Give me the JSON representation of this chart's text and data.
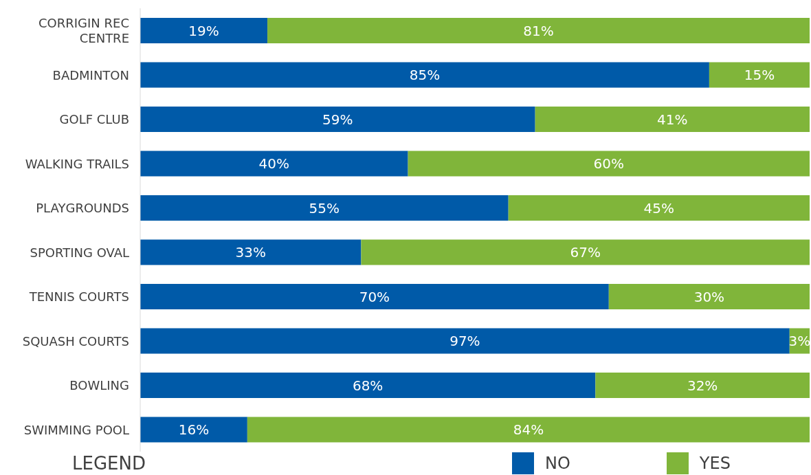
{
  "chart_data": {
    "type": "bar",
    "orientation": "horizontal",
    "stacked": true,
    "categories": [
      "CORRIGIN REC CENTRE",
      "BADMINTON",
      "GOLF CLUB",
      "WALKING TRAILS",
      "PLAYGROUNDS",
      "SPORTING OVAL",
      "TENNIS COURTS",
      "SQUASH COURTS",
      "BOWLING",
      "SWIMMING POOL"
    ],
    "series": [
      {
        "name": "NO",
        "color": "#005aa8",
        "values": [
          19,
          85,
          59,
          40,
          55,
          33,
          70,
          97,
          68,
          16
        ],
        "value_labels": [
          "19%",
          "85%",
          "59%",
          "40%",
          "55%",
          "33%",
          "70%",
          "97%",
          "68%",
          "16%"
        ]
      },
      {
        "name": "YES",
        "color": "#80b53a",
        "values": [
          81,
          15,
          41,
          60,
          45,
          67,
          30,
          3,
          32,
          84
        ],
        "value_labels": [
          "81%",
          "15%",
          "41%",
          "60%",
          "45%",
          "67%",
          "30%",
          "3%",
          "32%",
          "84%"
        ]
      }
    ],
    "xlim": [
      0,
      100
    ],
    "tick_labels": "y",
    "legend": "bottom",
    "legend_title": "LEGEND"
  }
}
